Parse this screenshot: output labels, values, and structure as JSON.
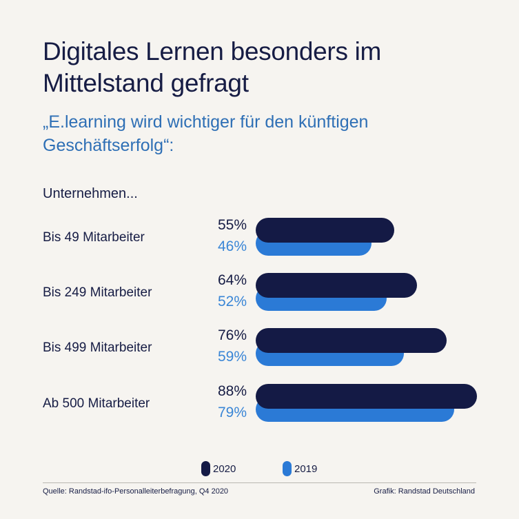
{
  "title": "Digitales Lernen besonders im Mittelstand gefragt",
  "subtitle": "„E.learning wird wichtiger für den künftigen Geschäftserfolg“:",
  "colors": {
    "s2020": "#141a45",
    "s2019": "#2b7ad6",
    "background": "#f6f4f0"
  },
  "chart_data": {
    "type": "bar",
    "orientation": "horizontal",
    "group_label": "Unternehmen...",
    "categories": [
      "Bis 49 Mitarbeiter",
      "Bis 249 Mitarbeiter",
      "Bis 499 Mitarbeiter",
      "Ab 500 Mitarbeiter"
    ],
    "series": [
      {
        "name": "2020",
        "values": [
          55,
          64,
          76,
          88
        ],
        "labels": [
          "55%",
          "64%",
          "76%",
          "88%"
        ]
      },
      {
        "name": "2019",
        "values": [
          46,
          52,
          59,
          79
        ],
        "labels": [
          "46%",
          "52%",
          "59%",
          "79%"
        ]
      }
    ],
    "unit": "%",
    "grid": false,
    "legend_position": "bottom"
  },
  "footer": {
    "source": "Quelle: Randstad-ifo-Personalleiterbefragung, Q4 2020",
    "credit": "Grafik: Randstad Deutschland"
  }
}
